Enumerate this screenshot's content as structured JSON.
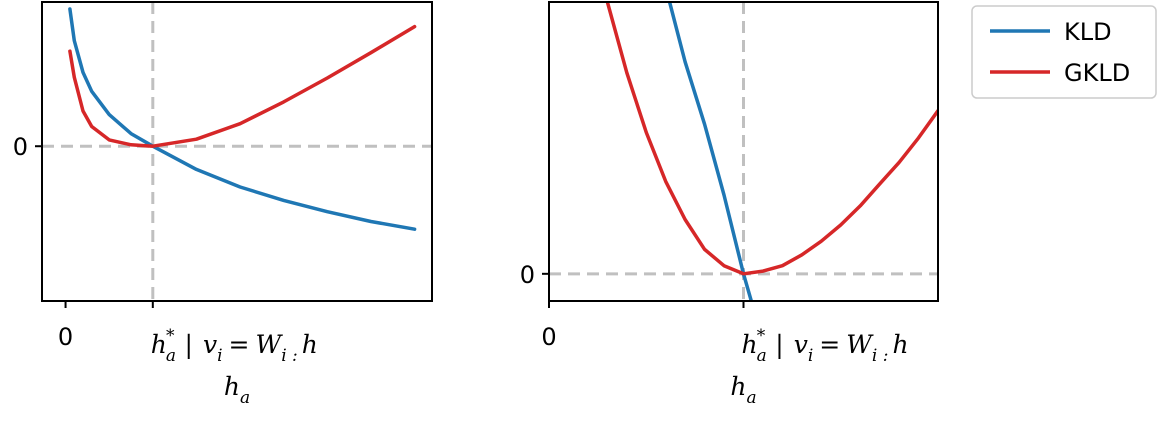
{
  "chart_data": [
    {
      "type": "line",
      "xlabel": "h_a",
      "x_ticks": [
        {
          "label": "0",
          "x": 0
        },
        {
          "label": "h_a^* | v_i = W_i: h",
          "x": 1
        }
      ],
      "y_ticks": [
        {
          "label": "0",
          "y": 0
        }
      ],
      "xlim": [
        -0.27,
        4.2
      ],
      "ylim": [
        -2.2,
        2.05
      ],
      "reference_lines": {
        "x": 1,
        "y": 0,
        "style": "dashed",
        "color": "#c0c0c0"
      },
      "series": [
        {
          "name": "KLD",
          "color": "#1f77b4",
          "x": [
            0.05,
            0.1,
            0.2,
            0.3,
            0.5,
            0.75,
            1.0,
            1.5,
            2.0,
            2.5,
            3.0,
            3.5,
            4.0
          ],
          "y": [
            1.95,
            1.5,
            1.05,
            0.78,
            0.45,
            0.18,
            0.0,
            -0.33,
            -0.58,
            -0.77,
            -0.93,
            -1.07,
            -1.18
          ]
        },
        {
          "name": "GKLD",
          "color": "#d62728",
          "x": [
            0.05,
            0.1,
            0.2,
            0.3,
            0.5,
            0.75,
            1.0,
            1.5,
            2.0,
            2.5,
            3.0,
            3.5,
            4.0
          ],
          "y": [
            1.35,
            0.98,
            0.5,
            0.28,
            0.09,
            0.02,
            0.0,
            0.1,
            0.32,
            0.63,
            0.97,
            1.33,
            1.7
          ]
        }
      ]
    },
    {
      "type": "line",
      "xlabel": "h_a",
      "x_ticks": [
        {
          "label": "0",
          "x": 0
        },
        {
          "label": "h_a^* | v_i = W_i: h",
          "x": 1
        }
      ],
      "y_ticks": [
        {
          "label": "0",
          "y": 0
        }
      ],
      "xlim": [
        0,
        2.0
      ],
      "ylim": [
        -0.1,
        1.0
      ],
      "reference_lines": {
        "x": 1,
        "y": 0,
        "style": "dashed",
        "color": "#c0c0c0"
      },
      "series": [
        {
          "name": "KLD",
          "color": "#1f77b4",
          "x": [
            0.62,
            0.7,
            0.8,
            0.9,
            1.0,
            1.04
          ],
          "y": [
            1.0,
            0.78,
            0.55,
            0.29,
            0.0,
            -0.1
          ]
        },
        {
          "name": "GKLD",
          "color": "#d62728",
          "x": [
            0.3,
            0.4,
            0.5,
            0.6,
            0.7,
            0.8,
            0.9,
            1.0,
            1.1,
            1.2,
            1.3,
            1.4,
            1.5,
            1.6,
            1.7,
            1.8,
            1.9,
            2.0
          ],
          "y": [
            1.0,
            0.74,
            0.52,
            0.34,
            0.2,
            0.09,
            0.03,
            0.0,
            0.01,
            0.03,
            0.07,
            0.12,
            0.18,
            0.25,
            0.33,
            0.41,
            0.5,
            0.6
          ]
        }
      ]
    }
  ],
  "legend": {
    "placement": "outside-top-right",
    "entries": [
      {
        "label": "KLD",
        "color": "#1f77b4"
      },
      {
        "label": "GKLD",
        "color": "#d62728"
      }
    ]
  },
  "axis_text": {
    "zero": "0",
    "xlabel_base": "h",
    "xlabel_sub": "a",
    "opt_base": "h",
    "opt_sub": "a",
    "opt_sup": "*",
    "opt_bar": "|",
    "opt_v": "v",
    "opt_v_sub": "i",
    "opt_eq": "=",
    "opt_W": "W",
    "opt_W_sub": "i :",
    "opt_end": "h"
  }
}
